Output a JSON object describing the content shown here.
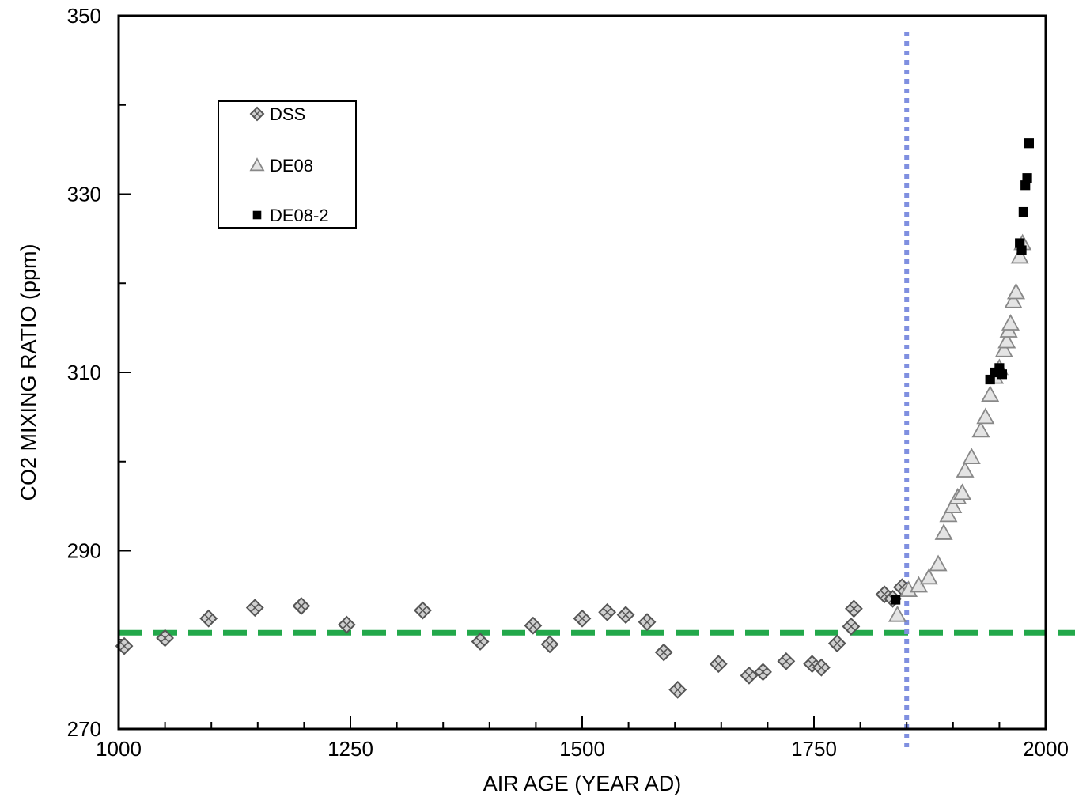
{
  "chart_data": {
    "type": "scatter",
    "title": "",
    "xlabel": "AIR AGE  (YEAR AD)",
    "ylabel": "CO2 MIXING RATIO  (ppm)",
    "xlim": [
      1000,
      2000
    ],
    "ylim": [
      270,
      350
    ],
    "x_ticks": [
      "1000",
      "1250",
      "1500",
      "1750",
      "2000"
    ],
    "y_ticks": [
      "270",
      "290",
      "310",
      "330",
      "350"
    ],
    "grid": false,
    "legend_position": "top-left",
    "reference_lines": [
      {
        "orientation": "horizontal",
        "value": 280.8,
        "style": "dashed",
        "color": "#22a84a"
      },
      {
        "orientation": "vertical",
        "value": 1850,
        "style": "dotted",
        "color": "#7f8fe0"
      }
    ],
    "series": [
      {
        "name": "DSS",
        "marker": "diamond",
        "color": "#555555",
        "points": [
          [
            1006,
            279.3
          ],
          [
            1050,
            280.2
          ],
          [
            1097,
            282.4
          ],
          [
            1147,
            283.6
          ],
          [
            1197,
            283.8
          ],
          [
            1246,
            281.7
          ],
          [
            1328,
            283.3
          ],
          [
            1390,
            279.8
          ],
          [
            1447,
            281.6
          ],
          [
            1465,
            279.5
          ],
          [
            1500,
            282.4
          ],
          [
            1527,
            283.1
          ],
          [
            1547,
            282.8
          ],
          [
            1570,
            282.0
          ],
          [
            1588,
            278.6
          ],
          [
            1603,
            274.4
          ],
          [
            1647,
            277.3
          ],
          [
            1680,
            276.0
          ],
          [
            1695,
            276.4
          ],
          [
            1720,
            277.6
          ],
          [
            1748,
            277.3
          ],
          [
            1758,
            276.9
          ],
          [
            1775,
            279.6
          ],
          [
            1790,
            281.5
          ],
          [
            1793,
            283.5
          ],
          [
            1826,
            285.1
          ],
          [
            1835,
            284.6
          ],
          [
            1845,
            285.9
          ]
        ]
      },
      {
        "name": "DE08",
        "marker": "triangle",
        "color": "#888888",
        "points": [
          [
            1840,
            282.8
          ],
          [
            1852,
            285.6
          ],
          [
            1863,
            286.1
          ],
          [
            1874,
            287.0
          ],
          [
            1884,
            288.5
          ],
          [
            1890,
            292.0
          ],
          [
            1895,
            294.0
          ],
          [
            1900,
            295.0
          ],
          [
            1905,
            296.0
          ],
          [
            1910,
            296.5
          ],
          [
            1913,
            299.0
          ],
          [
            1920,
            300.5
          ],
          [
            1930,
            303.5
          ],
          [
            1935,
            305.0
          ],
          [
            1940,
            307.5
          ],
          [
            1945,
            309.5
          ],
          [
            1950,
            310.5
          ],
          [
            1955,
            312.5
          ],
          [
            1958,
            313.5
          ],
          [
            1960,
            314.7
          ],
          [
            1962,
            315.5
          ],
          [
            1965,
            318.0
          ],
          [
            1968,
            319.0
          ],
          [
            1972,
            323.0
          ],
          [
            1975,
            324.5
          ]
        ]
      },
      {
        "name": "DE08-2",
        "marker": "square",
        "color": "#000000",
        "points": [
          [
            1838,
            284.5
          ],
          [
            1940,
            309.2
          ],
          [
            1945,
            310.0
          ],
          [
            1950,
            310.5
          ],
          [
            1953,
            309.8
          ],
          [
            1972,
            324.5
          ],
          [
            1974,
            323.7
          ],
          [
            1976,
            328.0
          ],
          [
            1978,
            331.0
          ],
          [
            1980,
            331.8
          ],
          [
            1982,
            335.7
          ]
        ]
      }
    ]
  }
}
